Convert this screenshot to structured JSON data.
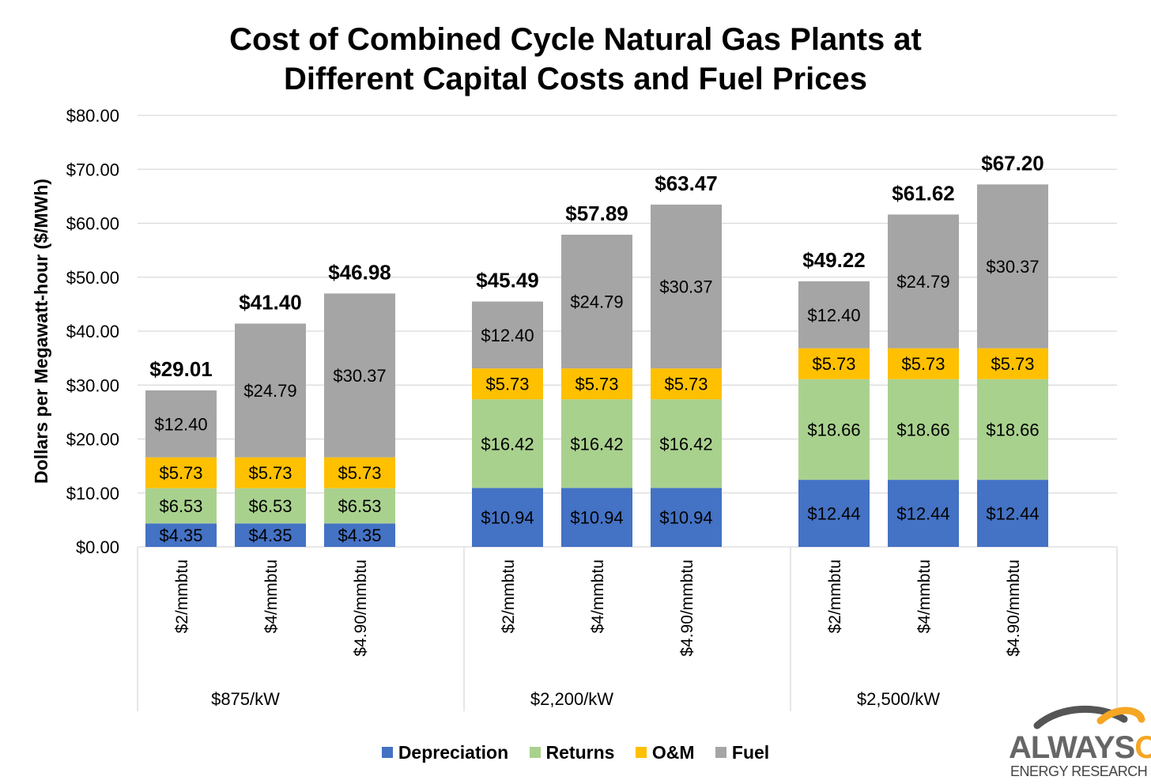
{
  "title_line1": "Cost of Combined Cycle Natural Gas Plants at",
  "title_line2": "Different Capital Costs and Fuel Prices",
  "colors": {
    "depreciation": "#4472c4",
    "returns": "#a9d18e",
    "om": "#ffc000",
    "fuel": "#a5a5a5"
  },
  "legend": [
    {
      "label": "Depreciation",
      "color": "#4472c4"
    },
    {
      "label": "Returns",
      "color": "#a9d18e"
    },
    {
      "label": "O&M",
      "color": "#ffc000"
    },
    {
      "label": "Fuel",
      "color": "#a5a5a5"
    }
  ],
  "logo": {
    "main_a": "ALWAYS",
    "main_b": "ON",
    "sub": "ENERGY RESEARCH"
  },
  "chart_data": {
    "type": "bar",
    "stacked": true,
    "ylabel": "Dollars per Megawatt-hour ($/MWh)",
    "ylim": [
      0,
      80
    ],
    "yticks": [
      0,
      10,
      20,
      30,
      40,
      50,
      60,
      70,
      80
    ],
    "ytick_labels": [
      "$0.00",
      "$10.00",
      "$20.00",
      "$30.00",
      "$40.00",
      "$50.00",
      "$60.00",
      "$70.00",
      "$80.00"
    ],
    "grid": true,
    "legend_position": "bottom",
    "groups": [
      "$875/kW",
      "$2,200/kW",
      "$2,500/kW"
    ],
    "categories": [
      "$2/mmbtu",
      "$4/mmbtu",
      "$4.90/mmbtu"
    ],
    "series": [
      {
        "name": "Depreciation",
        "values": [
          [
            4.35,
            4.35,
            4.35
          ],
          [
            10.94,
            10.94,
            10.94
          ],
          [
            12.44,
            12.44,
            12.44
          ]
        ],
        "labels": [
          [
            "$4.35",
            "$4.35",
            "$4.35"
          ],
          [
            "$10.94",
            "$10.94",
            "$10.94"
          ],
          [
            "$12.44",
            "$12.44",
            "$12.44"
          ]
        ]
      },
      {
        "name": "Returns",
        "values": [
          [
            6.53,
            6.53,
            6.53
          ],
          [
            16.42,
            16.42,
            16.42
          ],
          [
            18.66,
            18.66,
            18.66
          ]
        ],
        "labels": [
          [
            "$6.53",
            "$6.53",
            "$6.53"
          ],
          [
            "$16.42",
            "$16.42",
            "$16.42"
          ],
          [
            "$18.66",
            "$18.66",
            "$18.66"
          ]
        ]
      },
      {
        "name": "O&M",
        "values": [
          [
            5.73,
            5.73,
            5.73
          ],
          [
            5.73,
            5.73,
            5.73
          ],
          [
            5.73,
            5.73,
            5.73
          ]
        ],
        "labels": [
          [
            "$5.73",
            "$5.73",
            "$5.73"
          ],
          [
            "$5.73",
            "$5.73",
            "$5.73"
          ],
          [
            "$5.73",
            "$5.73",
            "$5.73"
          ]
        ]
      },
      {
        "name": "Fuel",
        "values": [
          [
            12.4,
            24.79,
            30.37
          ],
          [
            12.4,
            24.79,
            30.37
          ],
          [
            12.4,
            24.79,
            30.37
          ]
        ],
        "labels": [
          [
            "$12.40",
            "$24.79",
            "$30.37"
          ],
          [
            "$12.40",
            "$24.79",
            "$30.37"
          ],
          [
            "$12.40",
            "$24.79",
            "$30.37"
          ]
        ]
      }
    ],
    "totals": [
      [
        29.01,
        41.4,
        46.98
      ],
      [
        45.49,
        57.89,
        63.47
      ],
      [
        49.22,
        61.62,
        67.2
      ]
    ],
    "total_labels": [
      [
        "$29.01",
        "$41.40",
        "$46.98"
      ],
      [
        "$45.49",
        "$57.89",
        "$63.47"
      ],
      [
        "$49.22",
        "$61.62",
        "$67.20"
      ]
    ]
  }
}
